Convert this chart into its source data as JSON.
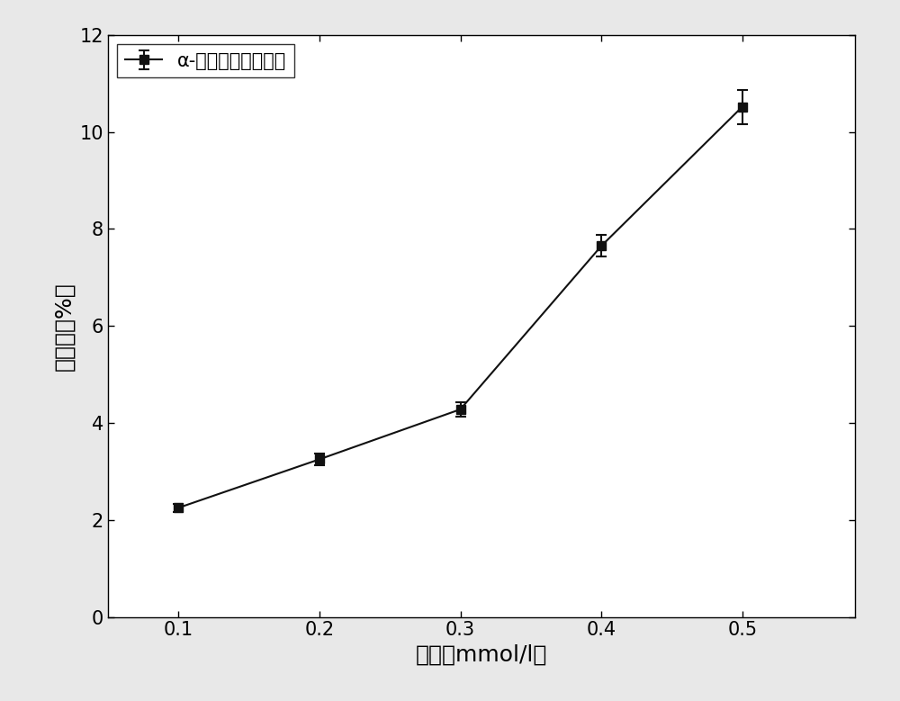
{
  "x": [
    0.1,
    0.2,
    0.3,
    0.4,
    0.5
  ],
  "y": [
    2.25,
    3.25,
    4.28,
    7.65,
    10.52
  ],
  "yerr": [
    0.08,
    0.12,
    0.15,
    0.22,
    0.35
  ],
  "xlabel": "浓度（mmol/l）",
  "ylabel": "抑制率（%）",
  "legend_label": "α-葡萄糖苷酵抑制率",
  "xlim": [
    0.05,
    0.58
  ],
  "ylim": [
    0,
    12
  ],
  "yticks": [
    0,
    2,
    4,
    6,
    8,
    10,
    12
  ],
  "xticks": [
    0.1,
    0.2,
    0.3,
    0.4,
    0.5
  ],
  "line_color": "#333333",
  "marker_color": "#111111",
  "marker": "s",
  "marker_size": 7,
  "line_width": 1.5,
  "background_color": "#e8e8e8",
  "plot_bg_color": "#ffffff",
  "xlabel_fontsize": 18,
  "ylabel_fontsize": 18,
  "tick_fontsize": 15,
  "legend_fontsize": 15
}
